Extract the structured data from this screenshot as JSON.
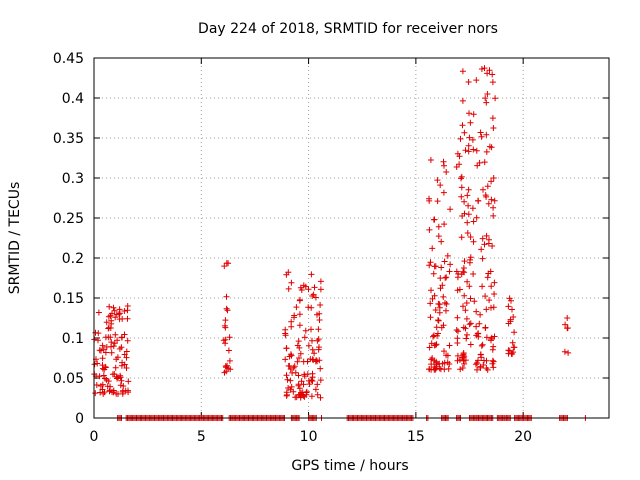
{
  "chart_data": {
    "type": "scatter",
    "title": "Day 224 of 2018, SRMTID for receiver nors",
    "xlabel": "GPS time / hours",
    "ylabel": "SRMTID / TECUs",
    "xlim": [
      0,
      24
    ],
    "ylim": [
      0,
      0.45
    ],
    "xticks": [
      0,
      5,
      10,
      15,
      20
    ],
    "yticks": [
      0,
      0.05,
      0.1,
      0.15,
      0.2,
      0.25,
      0.3,
      0.35,
      0.4,
      0.45
    ],
    "xtick_labels": [
      "0",
      "5",
      "10",
      "15",
      "20"
    ],
    "ytick_labels": [
      "0",
      "0.05",
      "0.1",
      "0.15",
      "0.2",
      "0.25",
      "0.3",
      "0.35",
      "0.4",
      "0.45"
    ],
    "grid": true,
    "marker": "+",
    "color": "#e00000",
    "clusters": [
      {
        "x_range": [
          0.0,
          1.6
        ],
        "y_range": [
          0.03,
          0.14
        ],
        "count": 110
      },
      {
        "x_range": [
          6.05,
          6.35
        ],
        "y_range": [
          0.055,
          0.2
        ],
        "count": 22
      },
      {
        "x_range": [
          8.9,
          10.6
        ],
        "y_range": [
          0.025,
          0.185
        ],
        "count": 120
      },
      {
        "x_range": [
          15.6,
          16.6
        ],
        "y_range": [
          0.06,
          0.33
        ],
        "count": 90
      },
      {
        "x_range": [
          16.9,
          18.7
        ],
        "y_range": [
          0.06,
          0.44
        ],
        "count": 180
      },
      {
        "x_range": [
          19.3,
          19.6
        ],
        "y_range": [
          0.08,
          0.15
        ],
        "count": 18
      },
      {
        "x_range": [
          21.9,
          22.1
        ],
        "y_range": [
          0.08,
          0.13
        ],
        "count": 6
      }
    ],
    "zero_segments": [
      [
        1.1,
        1.3
      ],
      [
        1.5,
        6.0
      ],
      [
        6.3,
        8.9
      ],
      [
        9.2,
        9.6
      ],
      [
        10.0,
        10.4
      ],
      [
        11.8,
        14.9
      ],
      [
        15.5,
        15.6
      ],
      [
        16.2,
        16.5
      ],
      [
        16.9,
        17.1
      ],
      [
        17.5,
        18.6
      ],
      [
        18.8,
        19.4
      ],
      [
        19.6,
        20.4
      ],
      [
        21.7,
        22.1
      ]
    ],
    "zero_points": [
      10.6,
      22.9
    ]
  }
}
